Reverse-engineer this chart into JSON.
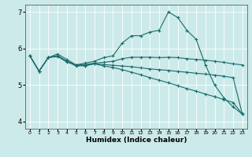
{
  "xlabel": "Humidex (Indice chaleur)",
  "ylabel": "",
  "xlim": [
    -0.5,
    23.5
  ],
  "ylim": [
    3.8,
    7.2
  ],
  "yticks": [
    4,
    5,
    6,
    7
  ],
  "xticks": [
    0,
    1,
    2,
    3,
    4,
    5,
    6,
    7,
    8,
    9,
    10,
    11,
    12,
    13,
    14,
    15,
    16,
    17,
    18,
    19,
    20,
    21,
    22,
    23
  ],
  "bg_color": "#cceaea",
  "line_color": "#1a6b6b",
  "grid_color": "#ffffff",
  "lines": [
    {
      "x": [
        0,
        1,
        2,
        3,
        4,
        5,
        6,
        7,
        8,
        9,
        10,
        11,
        12,
        13,
        14,
        15,
        16,
        17,
        18,
        19,
        20,
        21,
        22,
        23
      ],
      "y": [
        5.8,
        5.38,
        5.75,
        5.8,
        5.65,
        5.55,
        5.6,
        5.65,
        5.75,
        5.8,
        6.15,
        6.35,
        6.35,
        6.45,
        6.5,
        7.0,
        6.85,
        6.5,
        6.25,
        5.55,
        5.0,
        4.65,
        4.4,
        4.2
      ]
    },
    {
      "x": [
        0,
        1,
        2,
        3,
        4,
        5,
        6,
        7,
        8,
        9,
        10,
        11,
        12,
        13,
        14,
        15,
        16,
        17,
        18,
        19,
        20,
        21,
        22,
        23
      ],
      "y": [
        5.8,
        5.38,
        5.75,
        5.78,
        5.63,
        5.54,
        5.56,
        5.6,
        5.62,
        5.65,
        5.72,
        5.76,
        5.76,
        5.76,
        5.75,
        5.76,
        5.75,
        5.72,
        5.7,
        5.68,
        5.65,
        5.62,
        5.58,
        5.55
      ]
    },
    {
      "x": [
        0,
        1,
        2,
        3,
        4,
        5,
        6,
        7,
        8,
        9,
        10,
        11,
        12,
        13,
        14,
        15,
        16,
        17,
        18,
        19,
        20,
        21,
        22,
        23
      ],
      "y": [
        5.8,
        5.38,
        5.75,
        5.85,
        5.7,
        5.55,
        5.53,
        5.58,
        5.52,
        5.48,
        5.42,
        5.35,
        5.28,
        5.2,
        5.13,
        5.06,
        4.98,
        4.9,
        4.83,
        4.75,
        4.68,
        4.6,
        4.52,
        4.2
      ]
    },
    {
      "x": [
        0,
        1,
        2,
        3,
        4,
        5,
        6,
        7,
        8,
        9,
        10,
        11,
        12,
        13,
        14,
        15,
        16,
        17,
        18,
        19,
        20,
        21,
        22,
        23
      ],
      "y": [
        5.8,
        5.38,
        5.75,
        5.8,
        5.65,
        5.52,
        5.53,
        5.58,
        5.56,
        5.54,
        5.52,
        5.5,
        5.47,
        5.44,
        5.42,
        5.4,
        5.37,
        5.35,
        5.32,
        5.3,
        5.27,
        5.24,
        5.2,
        4.2
      ]
    }
  ]
}
